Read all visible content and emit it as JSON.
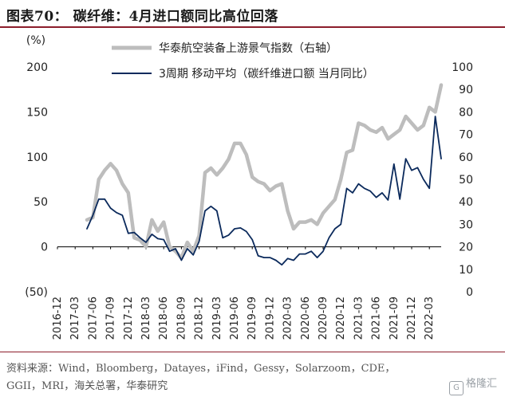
{
  "figure": {
    "title": "图表70： 碳纤维：4月进口额同比高位回落",
    "source_line1": "资料来源：Wind，Bloomberg，Datayes，iFind，Gessy，Solarzoom，CDE，",
    "source_line2": "GGII，MRI，海关总署，华泰研究",
    "watermark": "格隆汇",
    "watermark_logo": "G"
  },
  "chart_data": {
    "type": "line",
    "title": "碳纤维：4月进口额同比高位回落",
    "left_axis": {
      "label": "(%)",
      "ylim": [
        -50,
        200
      ],
      "ticks": [
        200,
        150,
        100,
        50,
        0,
        -50
      ],
      "tick_labels": [
        "200",
        "150",
        "100",
        "50",
        "0",
        "(50)"
      ]
    },
    "right_axis": {
      "label": "",
      "ylim": [
        0,
        100
      ],
      "ticks": [
        100,
        90,
        80,
        70,
        60,
        50,
        40,
        30,
        20,
        10,
        0
      ],
      "tick_labels": [
        "100",
        "90",
        "80",
        "70",
        "60",
        "50",
        "40",
        "30",
        "20",
        "10",
        "0"
      ]
    },
    "x_range": [
      "2016-12",
      "2022-05"
    ],
    "x_tick_labels": [
      "2016-12",
      "2017-03",
      "2017-06",
      "2017-09",
      "2017-12",
      "2018-03",
      "2018-06",
      "2018-09",
      "2018-12",
      "2019-03",
      "2019-06",
      "2019-09",
      "2019-12",
      "2020-03",
      "2020-06",
      "2020-09",
      "2020-12",
      "2021-03",
      "2021-06",
      "2021-09",
      "2021-12",
      "2022-03"
    ],
    "grid": false,
    "legend_position": "top",
    "series": [
      {
        "name": "华泰航空装备上游景气指数（右轴）",
        "axis": "right",
        "color": "#bdbdbd",
        "style": "thick",
        "x": [
          "2017-05",
          "2017-06",
          "2017-07",
          "2017-08",
          "2017-09",
          "2017-10",
          "2017-11",
          "2017-12",
          "2018-01",
          "2018-02",
          "2018-03",
          "2018-04",
          "2018-05",
          "2018-06",
          "2018-07",
          "2018-08",
          "2018-09",
          "2018-10",
          "2018-11",
          "2018-12",
          "2019-01",
          "2019-02",
          "2019-03",
          "2019-04",
          "2019-05",
          "2019-06",
          "2019-07",
          "2019-08",
          "2019-09",
          "2019-10",
          "2019-11",
          "2019-12",
          "2020-01",
          "2020-02",
          "2020-03",
          "2020-04",
          "2020-05",
          "2020-06",
          "2020-07",
          "2020-08",
          "2020-09",
          "2020-10",
          "2020-11",
          "2020-12",
          "2021-01",
          "2021-02",
          "2021-03",
          "2021-04",
          "2021-05",
          "2021-06",
          "2021-07",
          "2021-08",
          "2021-09",
          "2021-10",
          "2021-11",
          "2021-12",
          "2022-01",
          "2022-02",
          "2022-03",
          "2022-04",
          "2022-05"
        ],
        "values": [
          32,
          33,
          50,
          54,
          57,
          54,
          48,
          44,
          24,
          23,
          20,
          32,
          27,
          31,
          20,
          18,
          15,
          22,
          18,
          25,
          53,
          55,
          52,
          55,
          59,
          66,
          66,
          61,
          51,
          49,
          48,
          45,
          47,
          48,
          36,
          28,
          31,
          31,
          32,
          30,
          35,
          38,
          41,
          50,
          62,
          63,
          75,
          74,
          72,
          71,
          73,
          68,
          70,
          72,
          78,
          75,
          72,
          74,
          82,
          80,
          92
        ]
      },
      {
        "name": "3周期 移动平均（碳纤维进口额 当月同比）",
        "axis": "left",
        "color": "#0b2a5c",
        "style": "line",
        "x": [
          "2017-05",
          "2017-06",
          "2017-07",
          "2017-08",
          "2017-09",
          "2017-10",
          "2017-11",
          "2017-12",
          "2018-01",
          "2018-02",
          "2018-03",
          "2018-04",
          "2018-05",
          "2018-06",
          "2018-07",
          "2018-08",
          "2018-09",
          "2018-10",
          "2018-11",
          "2018-12",
          "2019-01",
          "2019-02",
          "2019-03",
          "2019-04",
          "2019-05",
          "2019-06",
          "2019-07",
          "2019-08",
          "2019-09",
          "2019-10",
          "2019-11",
          "2019-12",
          "2020-01",
          "2020-02",
          "2020-03",
          "2020-04",
          "2020-05",
          "2020-06",
          "2020-07",
          "2020-08",
          "2020-09",
          "2020-10",
          "2020-11",
          "2020-12",
          "2021-01",
          "2021-02",
          "2021-03",
          "2021-04",
          "2021-05",
          "2021-06",
          "2021-07",
          "2021-08",
          "2021-09",
          "2021-10",
          "2021-11",
          "2021-12",
          "2022-01",
          "2022-02",
          "2022-03",
          "2022-04",
          "2022-05"
        ],
        "values": [
          20,
          35,
          53,
          53,
          43,
          38,
          35,
          15,
          16,
          10,
          5,
          14,
          9,
          8,
          -5,
          -2,
          -15,
          -2,
          -9,
          6,
          40,
          45,
          40,
          10,
          13,
          20,
          21,
          17,
          8,
          -10,
          -12,
          -12,
          -15,
          -20,
          -13,
          -15,
          -8,
          -8,
          -5,
          -12,
          -5,
          10,
          20,
          25,
          65,
          60,
          70,
          65,
          62,
          55,
          60,
          52,
          92,
          53,
          98,
          85,
          88,
          75,
          65,
          145,
          98
        ]
      }
    ]
  }
}
